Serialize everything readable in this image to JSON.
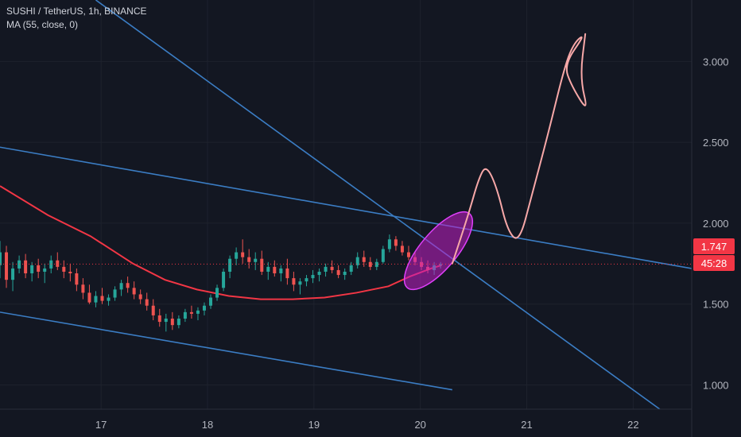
{
  "header": {
    "symbol_line": "SUSHI / TetherUS, 1h, BINANCE",
    "indicator_line": "MA (55, close, 0)"
  },
  "price_badge": {
    "price": "1.747",
    "countdown": "45:28"
  },
  "colors": {
    "background": "#131722",
    "grid": "#1e222d",
    "candle_up": "#26a69a",
    "candle_down": "#ef5350",
    "moving_average": "#f23645",
    "trendline": "#2962ff",
    "projection": "#f7a8a8",
    "ellipse": "#c21fc7",
    "price_label": "#f23645"
  },
  "chart_data": {
    "type": "candlestick",
    "title": "SUSHI / TetherUS, 1h, BINANCE",
    "x_ticks": [
      "17",
      "18",
      "19",
      "20",
      "21",
      "22"
    ],
    "x_tick_values": [
      17,
      18,
      19,
      20,
      21,
      22
    ],
    "xlim": [
      16.05,
      22.55
    ],
    "y_ticks": [
      "1.000",
      "1.500",
      "2.000",
      "2.500",
      "3.000"
    ],
    "y_tick_values": [
      1.0,
      1.5,
      2.0,
      2.5,
      3.0
    ],
    "ylim": [
      0.85,
      3.38
    ],
    "last_price": 1.747,
    "moving_average": {
      "name": "MA (55, close, 0)",
      "points": [
        [
          16.05,
          2.23
        ],
        [
          16.5,
          2.05
        ],
        [
          16.9,
          1.92
        ],
        [
          17.3,
          1.75
        ],
        [
          17.6,
          1.65
        ],
        [
          17.9,
          1.59
        ],
        [
          18.2,
          1.55
        ],
        [
          18.5,
          1.53
        ],
        [
          18.8,
          1.53
        ],
        [
          19.1,
          1.54
        ],
        [
          19.4,
          1.57
        ],
        [
          19.7,
          1.61
        ],
        [
          19.9,
          1.67
        ],
        [
          20.1,
          1.72
        ],
        [
          20.2,
          1.74
        ]
      ]
    },
    "candles": [
      [
        16.05,
        1.74,
        1.89,
        1.66,
        1.82
      ],
      [
        16.11,
        1.82,
        1.86,
        1.6,
        1.65
      ],
      [
        16.17,
        1.65,
        1.76,
        1.58,
        1.72
      ],
      [
        16.23,
        1.72,
        1.8,
        1.69,
        1.77
      ],
      [
        16.29,
        1.77,
        1.81,
        1.66,
        1.69
      ],
      [
        16.35,
        1.69,
        1.76,
        1.64,
        1.74
      ],
      [
        16.41,
        1.74,
        1.78,
        1.66,
        1.7
      ],
      [
        16.47,
        1.7,
        1.75,
        1.63,
        1.72
      ],
      [
        16.53,
        1.72,
        1.8,
        1.69,
        1.77
      ],
      [
        16.59,
        1.77,
        1.82,
        1.71,
        1.73
      ],
      [
        16.65,
        1.73,
        1.77,
        1.66,
        1.7
      ],
      [
        16.71,
        1.7,
        1.75,
        1.64,
        1.69
      ],
      [
        16.77,
        1.69,
        1.72,
        1.58,
        1.62
      ],
      [
        16.83,
        1.62,
        1.66,
        1.53,
        1.57
      ],
      [
        16.89,
        1.57,
        1.62,
        1.5,
        1.51
      ],
      [
        16.95,
        1.51,
        1.58,
        1.48,
        1.55
      ],
      [
        17.01,
        1.55,
        1.6,
        1.5,
        1.52
      ],
      [
        17.07,
        1.52,
        1.56,
        1.49,
        1.54
      ],
      [
        17.13,
        1.54,
        1.61,
        1.52,
        1.59
      ],
      [
        17.19,
        1.59,
        1.65,
        1.55,
        1.63
      ],
      [
        17.25,
        1.63,
        1.67,
        1.57,
        1.6
      ],
      [
        17.31,
        1.6,
        1.64,
        1.53,
        1.56
      ],
      [
        17.37,
        1.56,
        1.59,
        1.5,
        1.53
      ],
      [
        17.43,
        1.53,
        1.57,
        1.46,
        1.49
      ],
      [
        17.49,
        1.49,
        1.53,
        1.4,
        1.43
      ],
      [
        17.55,
        1.43,
        1.47,
        1.36,
        1.39
      ],
      [
        17.61,
        1.39,
        1.44,
        1.33,
        1.41
      ],
      [
        17.67,
        1.41,
        1.45,
        1.34,
        1.37
      ],
      [
        17.73,
        1.37,
        1.43,
        1.35,
        1.41
      ],
      [
        17.79,
        1.41,
        1.47,
        1.39,
        1.45
      ],
      [
        17.85,
        1.45,
        1.49,
        1.41,
        1.44
      ],
      [
        17.91,
        1.44,
        1.48,
        1.4,
        1.46
      ],
      [
        17.97,
        1.46,
        1.51,
        1.43,
        1.49
      ],
      [
        18.03,
        1.49,
        1.56,
        1.47,
        1.54
      ],
      [
        18.09,
        1.54,
        1.62,
        1.52,
        1.6
      ],
      [
        18.15,
        1.6,
        1.72,
        1.58,
        1.7
      ],
      [
        18.21,
        1.7,
        1.8,
        1.66,
        1.78
      ],
      [
        18.27,
        1.78,
        1.85,
        1.74,
        1.82
      ],
      [
        18.33,
        1.82,
        1.9,
        1.75,
        1.79
      ],
      [
        18.39,
        1.79,
        1.84,
        1.72,
        1.76
      ],
      [
        18.45,
        1.76,
        1.82,
        1.71,
        1.78
      ],
      [
        18.51,
        1.78,
        1.83,
        1.68,
        1.7
      ],
      [
        18.57,
        1.7,
        1.76,
        1.65,
        1.73
      ],
      [
        18.63,
        1.73,
        1.77,
        1.67,
        1.69
      ],
      [
        18.69,
        1.69,
        1.74,
        1.64,
        1.72
      ],
      [
        18.75,
        1.72,
        1.78,
        1.62,
        1.66
      ],
      [
        18.81,
        1.66,
        1.7,
        1.58,
        1.62
      ],
      [
        18.87,
        1.62,
        1.66,
        1.56,
        1.64
      ],
      [
        18.93,
        1.64,
        1.68,
        1.61,
        1.66
      ],
      [
        18.99,
        1.66,
        1.71,
        1.63,
        1.68
      ],
      [
        19.05,
        1.68,
        1.72,
        1.64,
        1.7
      ],
      [
        19.11,
        1.7,
        1.75,
        1.67,
        1.73
      ],
      [
        19.17,
        1.73,
        1.77,
        1.69,
        1.71
      ],
      [
        19.23,
        1.71,
        1.74,
        1.66,
        1.68
      ],
      [
        19.29,
        1.68,
        1.72,
        1.65,
        1.7
      ],
      [
        19.35,
        1.7,
        1.76,
        1.68,
        1.74
      ],
      [
        19.41,
        1.74,
        1.82,
        1.72,
        1.79
      ],
      [
        19.47,
        1.79,
        1.83,
        1.73,
        1.76
      ],
      [
        19.53,
        1.76,
        1.79,
        1.71,
        1.73
      ],
      [
        19.59,
        1.73,
        1.78,
        1.71,
        1.76
      ],
      [
        19.65,
        1.76,
        1.86,
        1.75,
        1.84
      ],
      [
        19.71,
        1.84,
        1.93,
        1.82,
        1.9
      ],
      [
        19.77,
        1.9,
        1.92,
        1.83,
        1.86
      ],
      [
        19.83,
        1.86,
        1.89,
        1.8,
        1.82
      ],
      [
        19.89,
        1.82,
        1.86,
        1.77,
        1.79
      ],
      [
        19.95,
        1.79,
        1.82,
        1.74,
        1.76
      ],
      [
        20.01,
        1.76,
        1.79,
        1.71,
        1.73
      ],
      [
        20.07,
        1.73,
        1.77,
        1.69,
        1.71
      ],
      [
        20.13,
        1.71,
        1.76,
        1.68,
        1.74
      ],
      [
        20.19,
        1.74,
        1.76,
        1.72,
        1.747
      ]
    ],
    "trendlines": [
      {
        "name": "",
        "from": [
          16.05,
          2.47
        ],
        "to": [
          22.55,
          1.72
        ]
      },
      {
        "name": "",
        "from": [
          16.05,
          1.45
        ],
        "to": [
          20.3,
          0.97
        ]
      },
      {
        "name": "",
        "from": [
          16.95,
          3.38
        ],
        "to": [
          22.25,
          0.85
        ]
      }
    ],
    "projection_path": [
      [
        20.3,
        1.75
      ],
      [
        20.45,
        2.05
      ],
      [
        20.55,
        2.28
      ],
      [
        20.62,
        2.36
      ],
      [
        20.72,
        2.22
      ],
      [
        20.82,
        1.95
      ],
      [
        20.93,
        1.88
      ],
      [
        21.05,
        2.18
      ],
      [
        21.2,
        2.55
      ],
      [
        21.36,
        2.98
      ],
      [
        21.45,
        3.12
      ],
      [
        21.55,
        3.17
      ],
      [
        21.35,
        2.98
      ],
      [
        21.42,
        2.85
      ],
      [
        21.58,
        2.68
      ],
      [
        21.5,
        2.9
      ],
      [
        21.55,
        3.17
      ]
    ],
    "highlight_ellipse": {
      "center": [
        20.17,
        1.83
      ],
      "rx_days": 0.38,
      "ry_price": 0.26,
      "rotation_deg": 55
    }
  }
}
